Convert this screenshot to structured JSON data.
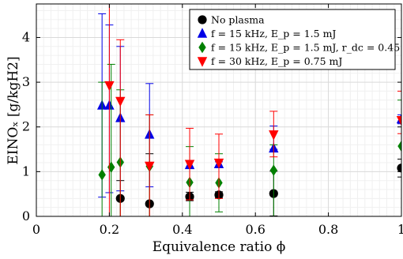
{
  "chart_data": {
    "type": "scatter",
    "title": "",
    "xlabel": "Equivalence ratio ϕ",
    "ylabel": "EINOₓ [g/kgH2]",
    "xlim": [
      0,
      1
    ],
    "ylim": [
      0,
      4.75
    ],
    "x_ticks": [
      0,
      0.2,
      0.4,
      0.6,
      0.8,
      1
    ],
    "x_tick_labels": [
      "0",
      "0.2",
      "0.4",
      "0.6",
      "0.8",
      "1"
    ],
    "y_ticks": [
      0,
      1,
      2,
      3,
      4
    ],
    "y_tick_labels": [
      "0",
      "1",
      "2",
      "3",
      "4"
    ],
    "grid": true,
    "minor_grid": true,
    "legend_position": "top-right",
    "series": [
      {
        "name": "No plasma",
        "marker": "circle",
        "color": "#000000",
        "x": [
          0.23,
          0.31,
          0.42,
          0.5,
          0.65,
          1.0
        ],
        "y": [
          0.4,
          0.28,
          0.44,
          0.48,
          0.51,
          1.08
        ],
        "err_low": [
          0.4,
          0.28,
          0.09,
          0.07,
          0.5,
          0.2
        ],
        "err_high": [
          0.4,
          1.12,
          0.1,
          0.07,
          0.5,
          0.2
        ]
      },
      {
        "name": "f = 15 kHz, E_p = 1.5 mJ",
        "marker": "triangle-up",
        "color": "#0000e6",
        "x": [
          0.18,
          0.2,
          0.23,
          0.31,
          0.42,
          0.5,
          0.65,
          1.0
        ],
        "y": [
          2.48,
          2.48,
          2.2,
          1.83,
          1.15,
          1.17,
          1.52,
          2.17
        ],
        "err_low": [
          2.05,
          1.95,
          1.63,
          1.17,
          0.05,
          0.05,
          0.02,
          0.1
        ],
        "err_high": [
          2.05,
          1.8,
          1.6,
          1.14,
          0.1,
          0.05,
          0.5,
          0.1
        ]
      },
      {
        "name": "f = 15 kHz, E_p = 1.5 mJ, r_dc = 0.45",
        "marker": "diamond",
        "color": "#008000",
        "x": [
          0.18,
          0.205,
          0.23,
          0.31,
          0.42,
          0.5,
          0.65,
          1.0
        ],
        "y": [
          0.93,
          1.1,
          1.21,
          1.12,
          0.76,
          0.75,
          1.03,
          1.57
        ],
        "err_low": [
          0.93,
          1.1,
          1.21,
          1.12,
          0.76,
          0.65,
          1.03,
          1.57
        ],
        "err_high": [
          2.07,
          2.3,
          1.62,
          1.15,
          0.8,
          0.65,
          0.57,
          1.03
        ]
      },
      {
        "name": "f = 30 kHz, E_p = 0.75 mJ",
        "marker": "triangle-down",
        "color": "#ff0000",
        "x": [
          0.2,
          0.23,
          0.31,
          0.42,
          0.5,
          0.65,
          1.0
        ],
        "y": [
          2.93,
          2.58,
          1.13,
          1.17,
          1.2,
          1.83,
          2.15
        ],
        "err_low": [
          2.93,
          2.58,
          1.13,
          0.8,
          0.8,
          0.5,
          0.3
        ],
        "err_high": [
          1.82,
          1.37,
          1.14,
          0.8,
          0.64,
          0.52,
          0.65
        ]
      }
    ]
  }
}
